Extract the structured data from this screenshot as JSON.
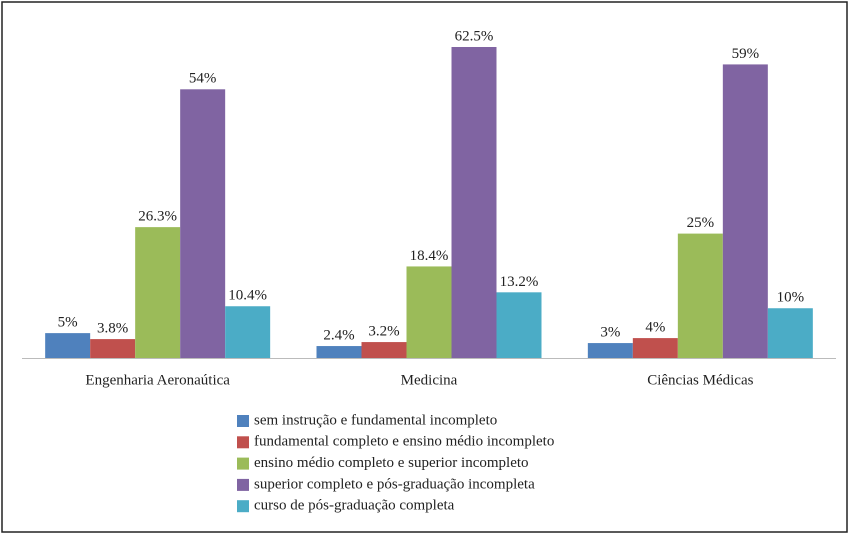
{
  "chart_data": {
    "type": "bar",
    "categories": [
      "Engenharia Aeronaútica",
      "Medicina",
      "Ciências Médicas"
    ],
    "series": [
      {
        "name": "sem instrução e fundamental incompleto",
        "color": "#4f81bd",
        "values": [
          5,
          2.4,
          3
        ],
        "value_labels": [
          "5%",
          "2.4%",
          "3%"
        ]
      },
      {
        "name": "fundamental completo e ensino médio incompleto",
        "color": "#c0504d",
        "values": [
          3.8,
          3.2,
          4
        ],
        "value_labels": [
          "3.8%",
          "3.2%",
          "4%"
        ]
      },
      {
        "name": "ensino médio completo e superior incompleto",
        "color": "#9bbb59",
        "values": [
          26.3,
          18.4,
          25
        ],
        "value_labels": [
          "26.3%",
          "18.4%",
          "25%"
        ]
      },
      {
        "name": "superior completo e pós-graduação incompleta",
        "color": "#8064a2",
        "values": [
          54,
          62.5,
          59
        ],
        "value_labels": [
          "54%",
          "62.5%",
          "59%"
        ]
      },
      {
        "name": "curso de pós-graduação completa",
        "color": "#4bacc6",
        "values": [
          10.4,
          13.2,
          10
        ],
        "value_labels": [
          "10.4%",
          "13.2%",
          "10%"
        ]
      }
    ],
    "legend": "bottom"
  }
}
